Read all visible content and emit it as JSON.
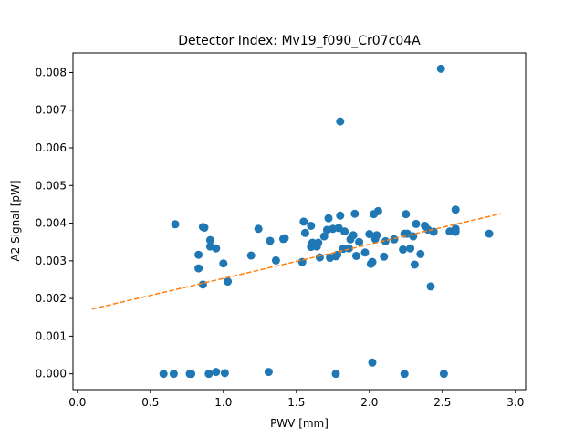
{
  "chart_data": {
    "type": "scatter",
    "title": "Detector Index: Mv19_f090_Cr07c04A",
    "xlabel": "PWV [mm]",
    "ylabel": "A2 Signal [pW]",
    "xlim": [
      -0.03,
      3.07
    ],
    "ylim": [
      -0.00042,
      0.00852
    ],
    "xticks": [
      0.0,
      0.5,
      1.0,
      1.5,
      2.0,
      2.5,
      3.0
    ],
    "xtick_labels": [
      "0.0",
      "0.5",
      "1.0",
      "1.5",
      "2.0",
      "2.5",
      "3.0"
    ],
    "yticks": [
      0.0,
      0.001,
      0.002,
      0.003,
      0.004,
      0.005,
      0.006,
      0.007,
      0.008
    ],
    "ytick_labels": [
      "0.000",
      "0.001",
      "0.002",
      "0.003",
      "0.004",
      "0.005",
      "0.006",
      "0.007",
      "0.008"
    ],
    "grid": false,
    "colors": {
      "points": "#1f77b4",
      "fit": "#ff7f0e"
    },
    "series": [
      {
        "name": "data",
        "kind": "scatter",
        "points": [
          [
            0.59,
            0.0
          ],
          [
            0.66,
            0.0
          ],
          [
            0.77,
            0.0
          ],
          [
            0.78,
            0.0
          ],
          [
            0.9,
            0.0
          ],
          [
            0.95,
            5e-05
          ],
          [
            1.01,
            2e-05
          ],
          [
            1.31,
            5e-05
          ],
          [
            1.77,
            0.0
          ],
          [
            2.02,
            0.0003
          ],
          [
            2.24,
            0.0
          ],
          [
            2.51,
            0.0
          ],
          [
            0.67,
            0.00397
          ],
          [
            0.86,
            0.0039
          ],
          [
            0.87,
            0.00388
          ],
          [
            0.91,
            0.00355
          ],
          [
            0.91,
            0.00338
          ],
          [
            0.95,
            0.00333
          ],
          [
            0.83,
            0.00316
          ],
          [
            0.83,
            0.0028
          ],
          [
            0.86,
            0.00237
          ],
          [
            1.0,
            0.00293
          ],
          [
            1.03,
            0.00245
          ],
          [
            1.19,
            0.00314
          ],
          [
            1.24,
            0.00385
          ],
          [
            1.32,
            0.00353
          ],
          [
            1.36,
            0.00301
          ],
          [
            1.41,
            0.00358
          ],
          [
            1.42,
            0.0036
          ],
          [
            1.54,
            0.00297
          ],
          [
            1.55,
            0.00404
          ],
          [
            1.56,
            0.00374
          ],
          [
            1.6,
            0.00393
          ],
          [
            1.6,
            0.00337
          ],
          [
            1.61,
            0.00348
          ],
          [
            1.64,
            0.00338
          ],
          [
            1.65,
            0.00348
          ],
          [
            1.66,
            0.00309
          ],
          [
            1.69,
            0.00365
          ],
          [
            1.71,
            0.00382
          ],
          [
            1.72,
            0.00413
          ],
          [
            1.73,
            0.00308
          ],
          [
            1.75,
            0.00385
          ],
          [
            1.77,
            0.00312
          ],
          [
            1.78,
            0.00316
          ],
          [
            1.79,
            0.00387
          ],
          [
            1.8,
            0.0042
          ],
          [
            1.8,
            0.0067
          ],
          [
            1.82,
            0.00332
          ],
          [
            1.83,
            0.00378
          ],
          [
            1.86,
            0.00333
          ],
          [
            1.87,
            0.00357
          ],
          [
            1.89,
            0.00368
          ],
          [
            1.9,
            0.00425
          ],
          [
            1.91,
            0.00313
          ],
          [
            1.93,
            0.0035
          ],
          [
            1.97,
            0.00322
          ],
          [
            2.0,
            0.00371
          ],
          [
            2.01,
            0.00292
          ],
          [
            2.02,
            0.00297
          ],
          [
            2.03,
            0.00424
          ],
          [
            2.04,
            0.00358
          ],
          [
            2.05,
            0.00368
          ],
          [
            2.06,
            0.00432
          ],
          [
            2.1,
            0.00311
          ],
          [
            2.11,
            0.00352
          ],
          [
            2.17,
            0.00357
          ],
          [
            2.23,
            0.0033
          ],
          [
            2.24,
            0.00372
          ],
          [
            2.25,
            0.00424
          ],
          [
            2.26,
            0.00372
          ],
          [
            2.28,
            0.00333
          ],
          [
            2.3,
            0.00365
          ],
          [
            2.31,
            0.0029
          ],
          [
            2.32,
            0.00398
          ],
          [
            2.35,
            0.00318
          ],
          [
            2.38,
            0.00393
          ],
          [
            2.4,
            0.00383
          ],
          [
            2.42,
            0.00232
          ],
          [
            2.44,
            0.00377
          ],
          [
            2.49,
            0.0081
          ],
          [
            2.55,
            0.00378
          ],
          [
            2.59,
            0.00436
          ],
          [
            2.59,
            0.00385
          ],
          [
            2.59,
            0.00377
          ],
          [
            2.82,
            0.00372
          ]
        ]
      },
      {
        "name": "fit",
        "kind": "line",
        "style": "dashed",
        "points": [
          [
            0.1,
            0.00172
          ],
          [
            2.9,
            0.00425
          ]
        ]
      }
    ]
  }
}
